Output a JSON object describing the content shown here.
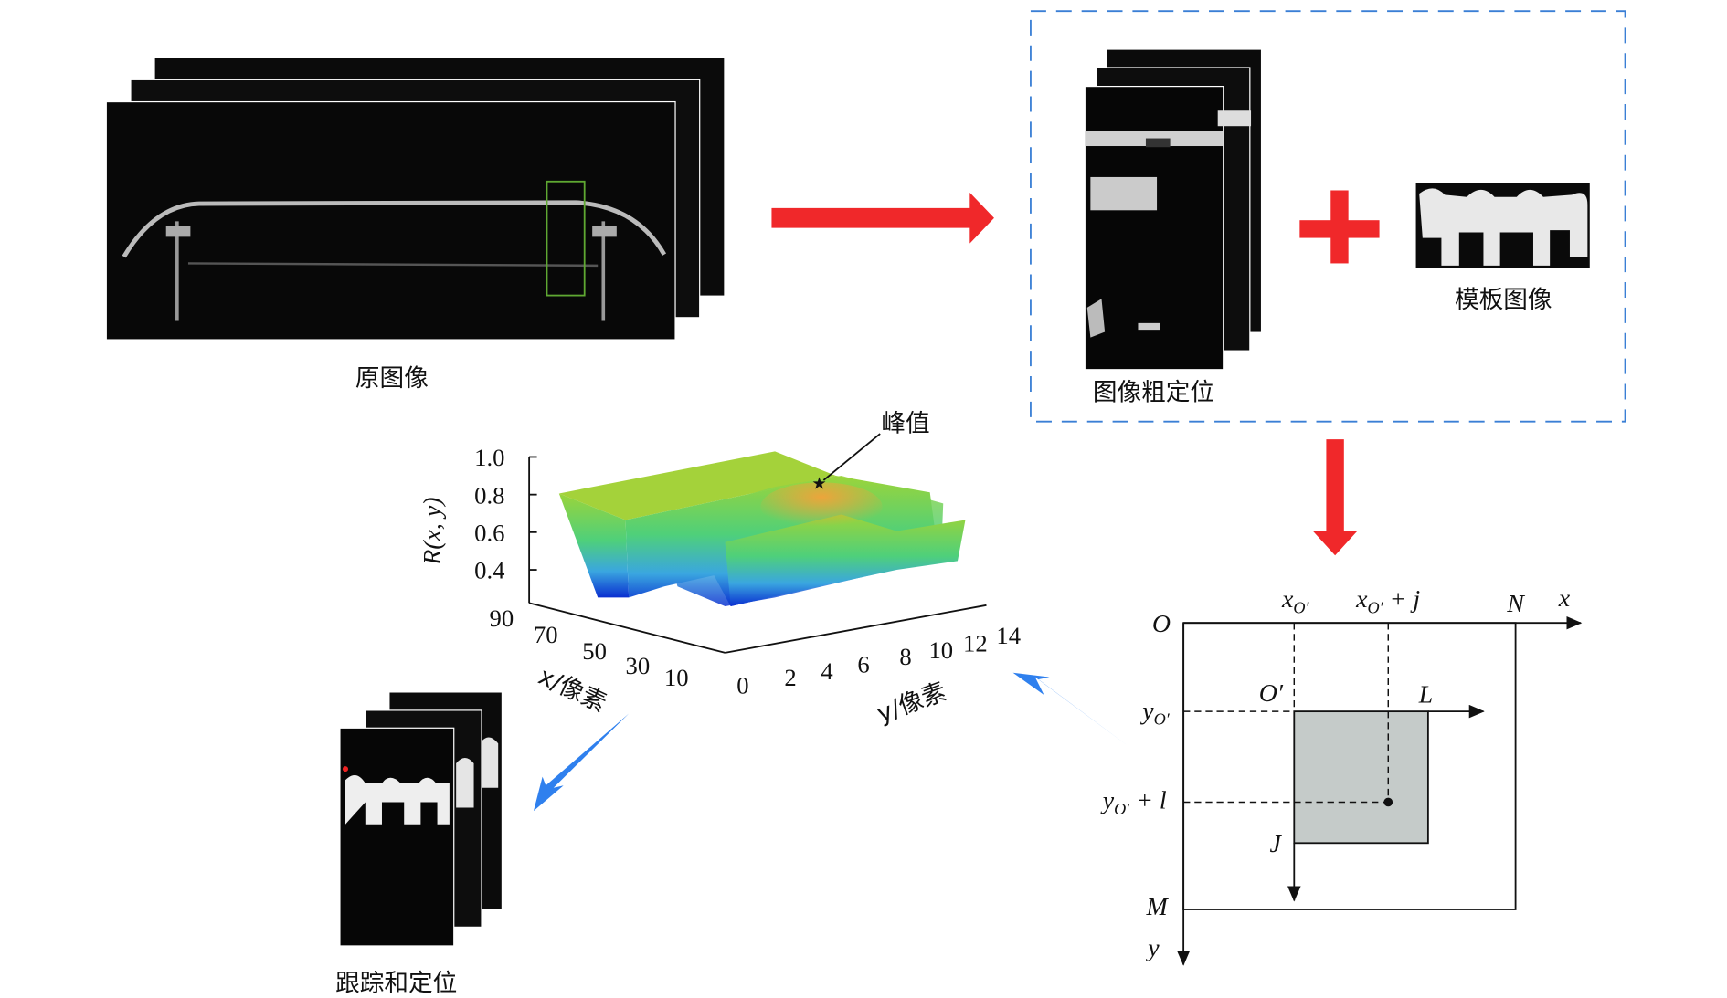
{
  "labels": {
    "original_image": "原图像",
    "coarse_localization": "图像粗定位",
    "template_image": "模板图像",
    "tracking": "跟踪和定位",
    "peak": "峰值"
  },
  "plot3d": {
    "z_label": "R(x, y)",
    "z_ticks": [
      "1.0",
      "0.8",
      "0.6",
      "0.4"
    ],
    "x_label": "x/像素",
    "x_ticks": [
      "90",
      "70",
      "50",
      "30",
      "10"
    ],
    "y_label": "y/像素",
    "y_ticks": [
      "0",
      "2",
      "4",
      "6",
      "8",
      "10",
      "12",
      "14"
    ],
    "colormap": [
      "#0a2fd0",
      "#3aa6e0",
      "#4fd07a",
      "#9bd43a",
      "#f2a23a"
    ]
  },
  "coord": {
    "O": "O",
    "x": "x",
    "y": "y",
    "N": "N",
    "M": "M",
    "L": "L",
    "J": "J",
    "O_prime": "O′",
    "xo_main": "x",
    "xo_sub": "O′",
    "xoj_main": "x",
    "xoj_sub": "O′",
    "xoj_tail": " + j",
    "yo_main": "y",
    "yo_sub": "O′",
    "yol_main": "y",
    "yol_sub": "O′",
    "yol_tail": " + l"
  },
  "colors": {
    "arrow_red": "#f0282a",
    "arrow_blue": "#2f80ee",
    "dashed_box": "#3a7fd5",
    "roi_fill": "#c5cbc9",
    "roi_box": "#5fa832"
  }
}
